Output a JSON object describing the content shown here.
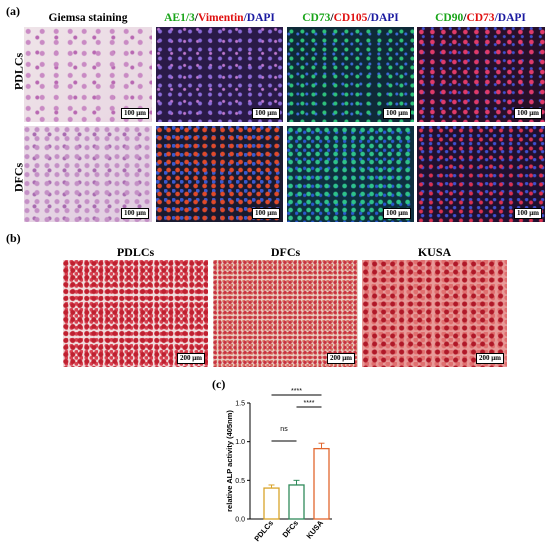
{
  "panel_a": {
    "letter": "(a)",
    "columns": [
      {
        "parts": [
          {
            "text": "Giemsa staining",
            "color": "#000000"
          }
        ]
      },
      {
        "parts": [
          {
            "text": "AE1/3",
            "color": "#1aa51a"
          },
          {
            "text": "/",
            "color": "#000000"
          },
          {
            "text": "Vimentin",
            "color": "#e01010"
          },
          {
            "text": "/DAPI",
            "color": "#1a1aa0"
          }
        ]
      },
      {
        "parts": [
          {
            "text": "CD73",
            "color": "#1aa51a"
          },
          {
            "text": "/",
            "color": "#000000"
          },
          {
            "text": "CD105",
            "color": "#e01010"
          },
          {
            "text": "/DAPI",
            "color": "#1a1aa0"
          }
        ]
      },
      {
        "parts": [
          {
            "text": "CD90",
            "color": "#1aa51a"
          },
          {
            "text": "/",
            "color": "#000000"
          },
          {
            "text": "CD73",
            "color": "#e01010"
          },
          {
            "text": "/DAPI",
            "color": "#1a1aa0"
          }
        ]
      }
    ],
    "rows": [
      "PDLCs",
      "DFCs"
    ],
    "scale": "100 μm"
  },
  "panel_b": {
    "letter": "(b)",
    "titles": [
      "PDLCs",
      "DFCs",
      "KUSA"
    ],
    "scale": "200 μm"
  },
  "panel_c": {
    "letter": "(c)",
    "chart_data": {
      "type": "bar",
      "categories": [
        "PDLCs",
        "DFCs",
        "KUSA"
      ],
      "values": [
        0.4,
        0.44,
        0.91
      ],
      "errors": [
        0.04,
        0.06,
        0.07
      ],
      "colors": [
        "#d9a32a",
        "#2f8a5a",
        "#e2672e"
      ],
      "ylabel": "relative ALP activity (405nm)",
      "ylim": [
        0,
        1.5
      ],
      "yticks": [
        "0.0",
        "0.5",
        "1.0",
        "1.5"
      ],
      "significance": [
        {
          "pair": [
            "PDLCs",
            "DFCs"
          ],
          "label": "ns"
        },
        {
          "pair": [
            "PDLCs",
            "KUSA"
          ],
          "label": "****"
        },
        {
          "pair": [
            "DFCs",
            "KUSA"
          ],
          "label": "****"
        }
      ]
    }
  }
}
